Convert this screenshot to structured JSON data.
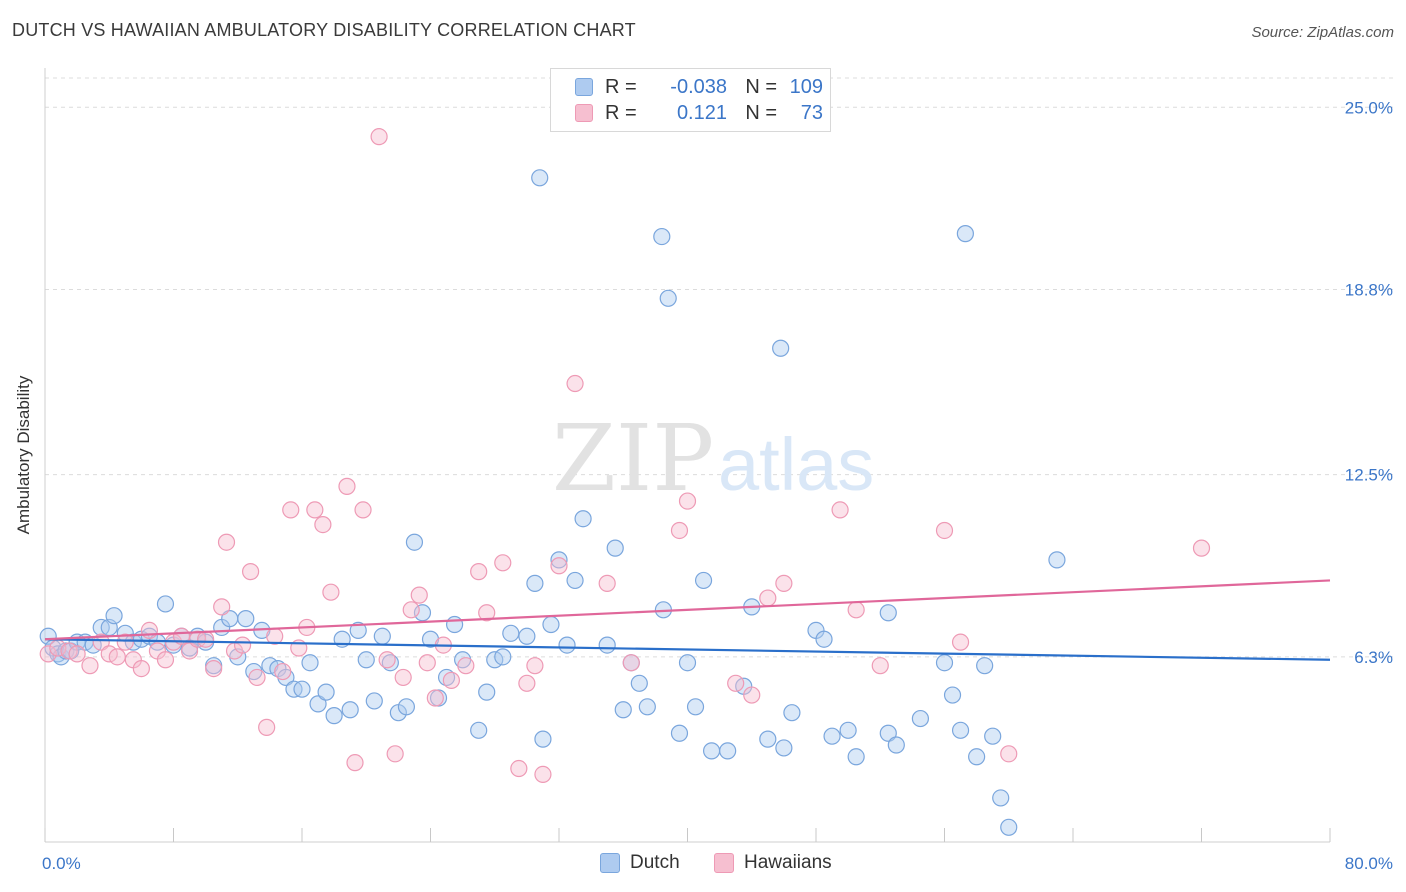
{
  "header": {
    "title": "DUTCH VS HAWAIIAN AMBULATORY DISABILITY CORRELATION CHART",
    "source": "Source: ZipAtlas.com"
  },
  "colors": {
    "dutch_fill": "#aecbf0",
    "dutch_stroke": "#7aa6dd",
    "dutch_line": "#2a6fca",
    "hawaiians_fill": "#f6bfd0",
    "hawaiians_stroke": "#ee9ab5",
    "hawaiians_line": "#e0679a",
    "tick_label": "#3b76c8"
  },
  "legend": {
    "dutch": {
      "r_label": "R =",
      "r_value": "-0.038",
      "n_label": "N =",
      "n_value": "109"
    },
    "hawaiians": {
      "r_label": "R =",
      "r_value": "0.121",
      "n_label": "N =",
      "n_value": "73"
    }
  },
  "bottom_legend": {
    "dutch": "Dutch",
    "hawaiians": "Hawaiians"
  },
  "chart_data": {
    "type": "scatter",
    "title": "DUTCH VS HAWAIIAN AMBULATORY DISABILITY CORRELATION CHART",
    "xlabel": "",
    "ylabel": "Ambulatory Disability",
    "xlim": [
      0,
      80
    ],
    "ylim": [
      0,
      26.2
    ],
    "x_tick_labels": [
      "0.0%",
      "80.0%"
    ],
    "y_ticks": [
      6.3,
      12.5,
      18.8,
      25.0
    ],
    "y_tick_labels": [
      "6.3%",
      "12.5%",
      "18.8%",
      "25.0%"
    ],
    "grid": "horizontal dashed",
    "legend_position": "top-center",
    "watermark": {
      "zip": "ZIP",
      "atlas": "atlas"
    },
    "series": [
      {
        "name": "Dutch",
        "trend": {
          "x": [
            0,
            80
          ],
          "y": [
            6.9,
            6.2
          ]
        },
        "points": [
          [
            0.2,
            7.0
          ],
          [
            0.5,
            6.6
          ],
          [
            0.8,
            6.4
          ],
          [
            1.0,
            6.3
          ],
          [
            1.3,
            6.5
          ],
          [
            1.6,
            6.5
          ],
          [
            2.0,
            6.8
          ],
          [
            2.5,
            6.8
          ],
          [
            3.0,
            6.7
          ],
          [
            3.5,
            7.3
          ],
          [
            4.0,
            7.3
          ],
          [
            4.3,
            7.7
          ],
          [
            5.0,
            7.1
          ],
          [
            5.5,
            6.8
          ],
          [
            6.0,
            6.9
          ],
          [
            6.5,
            7.0
          ],
          [
            7.0,
            6.8
          ],
          [
            7.5,
            8.1
          ],
          [
            8.0,
            6.7
          ],
          [
            8.5,
            7.0
          ],
          [
            9.0,
            6.6
          ],
          [
            9.5,
            7.0
          ],
          [
            10.0,
            6.8
          ],
          [
            10.5,
            6.0
          ],
          [
            11.0,
            7.3
          ],
          [
            11.5,
            7.6
          ],
          [
            12.0,
            6.3
          ],
          [
            12.5,
            7.6
          ],
          [
            13.0,
            5.8
          ],
          [
            13.5,
            7.2
          ],
          [
            14.0,
            6.0
          ],
          [
            14.5,
            5.9
          ],
          [
            15.0,
            5.6
          ],
          [
            15.5,
            5.2
          ],
          [
            16.0,
            5.2
          ],
          [
            16.5,
            6.1
          ],
          [
            17.0,
            4.7
          ],
          [
            17.5,
            5.1
          ],
          [
            18.0,
            4.3
          ],
          [
            18.5,
            6.9
          ],
          [
            19.0,
            4.5
          ],
          [
            19.5,
            7.2
          ],
          [
            20.0,
            6.2
          ],
          [
            20.5,
            4.8
          ],
          [
            21.0,
            7.0
          ],
          [
            21.5,
            6.1
          ],
          [
            22.0,
            4.4
          ],
          [
            22.5,
            4.6
          ],
          [
            23.0,
            10.2
          ],
          [
            23.5,
            7.8
          ],
          [
            24.0,
            6.9
          ],
          [
            24.5,
            4.9
          ],
          [
            25.0,
            5.6
          ],
          [
            25.5,
            7.4
          ],
          [
            26.0,
            6.2
          ],
          [
            27.0,
            3.8
          ],
          [
            27.5,
            5.1
          ],
          [
            28.0,
            6.2
          ],
          [
            28.5,
            6.3
          ],
          [
            29.0,
            7.1
          ],
          [
            30.0,
            7.0
          ],
          [
            30.5,
            8.8
          ],
          [
            31.0,
            3.5
          ],
          [
            31.5,
            7.4
          ],
          [
            32.0,
            9.6
          ],
          [
            32.5,
            6.7
          ],
          [
            33.0,
            8.9
          ],
          [
            33.5,
            11.0
          ],
          [
            35.0,
            6.7
          ],
          [
            35.5,
            10.0
          ],
          [
            36.0,
            4.5
          ],
          [
            36.5,
            6.1
          ],
          [
            37.0,
            5.4
          ],
          [
            37.5,
            4.6
          ],
          [
            38.5,
            7.9
          ],
          [
            39.5,
            3.7
          ],
          [
            40.0,
            6.1
          ],
          [
            40.5,
            4.6
          ],
          [
            41.0,
            8.9
          ],
          [
            41.5,
            3.1
          ],
          [
            42.5,
            3.1
          ],
          [
            43.5,
            5.3
          ],
          [
            44.0,
            8.0
          ],
          [
            45.0,
            3.5
          ],
          [
            46.0,
            3.2
          ],
          [
            46.5,
            4.4
          ],
          [
            48.0,
            7.2
          ],
          [
            48.5,
            6.9
          ],
          [
            49.0,
            3.6
          ],
          [
            50.0,
            3.8
          ],
          [
            50.5,
            2.9
          ],
          [
            52.5,
            3.7
          ],
          [
            52.5,
            7.8
          ],
          [
            53.0,
            3.3
          ],
          [
            54.5,
            4.2
          ],
          [
            56.0,
            6.1
          ],
          [
            56.5,
            5.0
          ],
          [
            57.0,
            3.8
          ],
          [
            58.0,
            2.9
          ],
          [
            58.5,
            6.0
          ],
          [
            59.0,
            3.6
          ],
          [
            59.5,
            1.5
          ],
          [
            60.0,
            0.5
          ],
          [
            63.0,
            9.6
          ],
          [
            30.8,
            22.6
          ],
          [
            38.4,
            20.6
          ],
          [
            38.8,
            18.5
          ],
          [
            57.3,
            20.7
          ],
          [
            45.8,
            16.8
          ]
        ]
      },
      {
        "name": "Hawaiians",
        "trend": {
          "x": [
            0,
            80
          ],
          "y": [
            6.9,
            8.9
          ]
        },
        "points": [
          [
            0.2,
            6.4
          ],
          [
            0.8,
            6.6
          ],
          [
            1.5,
            6.5
          ],
          [
            2.0,
            6.4
          ],
          [
            2.8,
            6.0
          ],
          [
            3.5,
            6.8
          ],
          [
            4.0,
            6.4
          ],
          [
            4.5,
            6.3
          ],
          [
            5.0,
            6.8
          ],
          [
            5.5,
            6.2
          ],
          [
            6.0,
            5.9
          ],
          [
            6.5,
            7.2
          ],
          [
            7.0,
            6.5
          ],
          [
            7.5,
            6.2
          ],
          [
            8.0,
            6.8
          ],
          [
            8.5,
            7.0
          ],
          [
            9.0,
            6.5
          ],
          [
            9.5,
            6.9
          ],
          [
            10.0,
            6.9
          ],
          [
            10.5,
            5.9
          ],
          [
            11.0,
            8.0
          ],
          [
            11.3,
            10.2
          ],
          [
            11.8,
            6.5
          ],
          [
            12.3,
            6.7
          ],
          [
            12.8,
            9.2
          ],
          [
            13.2,
            5.6
          ],
          [
            13.8,
            3.9
          ],
          [
            14.3,
            7.0
          ],
          [
            14.8,
            5.8
          ],
          [
            15.3,
            11.3
          ],
          [
            15.8,
            6.6
          ],
          [
            16.3,
            7.3
          ],
          [
            16.8,
            11.3
          ],
          [
            17.3,
            10.8
          ],
          [
            17.8,
            8.5
          ],
          [
            18.8,
            12.1
          ],
          [
            19.3,
            2.7
          ],
          [
            19.8,
            11.3
          ],
          [
            20.8,
            24.0
          ],
          [
            21.3,
            6.2
          ],
          [
            21.8,
            3.0
          ],
          [
            22.3,
            5.6
          ],
          [
            22.8,
            7.9
          ],
          [
            23.3,
            8.4
          ],
          [
            23.8,
            6.1
          ],
          [
            24.3,
            4.9
          ],
          [
            24.8,
            6.7
          ],
          [
            25.3,
            5.5
          ],
          [
            26.2,
            6.0
          ],
          [
            27.0,
            9.2
          ],
          [
            27.5,
            7.8
          ],
          [
            28.5,
            9.5
          ],
          [
            29.5,
            2.5
          ],
          [
            30.0,
            5.4
          ],
          [
            30.5,
            6.0
          ],
          [
            31.0,
            2.3
          ],
          [
            32.0,
            9.4
          ],
          [
            33.0,
            15.6
          ],
          [
            35.0,
            8.8
          ],
          [
            36.5,
            6.1
          ],
          [
            39.5,
            10.6
          ],
          [
            40.0,
            11.6
          ],
          [
            43.0,
            5.4
          ],
          [
            44.0,
            5.0
          ],
          [
            45.0,
            8.3
          ],
          [
            46.0,
            8.8
          ],
          [
            49.5,
            11.3
          ],
          [
            50.5,
            7.9
          ],
          [
            52.0,
            6.0
          ],
          [
            56.0,
            10.6
          ],
          [
            57.0,
            6.8
          ],
          [
            60.0,
            3.0
          ],
          [
            72.0,
            10.0
          ]
        ]
      }
    ]
  }
}
